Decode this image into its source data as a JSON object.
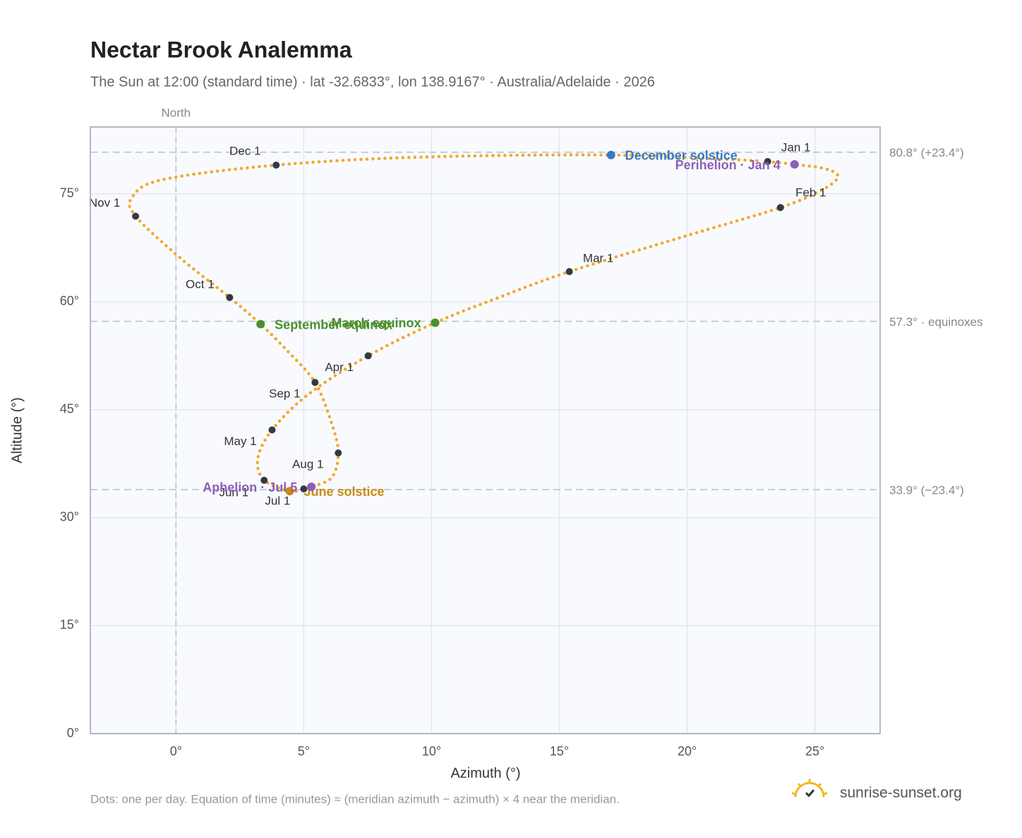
{
  "chart_data": {
    "type": "scatter",
    "title": "Nectar Brook Analemma",
    "subtitle": "The Sun at 12:00 (standard time) · lat -32.6833°, lon 138.9167° · Australia/Adelaide · 2026",
    "x_label": "Azimuth (°)",
    "y_label": "Altitude (°)",
    "xlim": [
      -3.35,
      27.55
    ],
    "ylim": [
      0,
      84.3
    ],
    "xticks": [
      {
        "value": 0,
        "label": "0°"
      },
      {
        "value": 5,
        "label": "5°"
      },
      {
        "value": 10,
        "label": "10°"
      },
      {
        "value": 15,
        "label": "15°"
      },
      {
        "value": 20,
        "label": "20°"
      },
      {
        "value": 25,
        "label": "25°"
      }
    ],
    "yticks": [
      {
        "value": 0,
        "label": "0°"
      },
      {
        "value": 15,
        "label": "15°"
      },
      {
        "value": 30,
        "label": "30°"
      },
      {
        "value": 45,
        "label": "45°"
      },
      {
        "value": 60,
        "label": "60°"
      },
      {
        "value": 75,
        "label": "75°"
      }
    ],
    "grid": true,
    "north_line": {
      "value": 0,
      "label": "North"
    },
    "reference_lines": [
      {
        "value": 80.8,
        "label": "80.8° (+23.4°)"
      },
      {
        "value": 57.3,
        "label": "57.3° · equinoxes"
      },
      {
        "value": 33.9,
        "label": "33.9° (−23.4°)"
      }
    ],
    "path": {
      "color": "#f4a62a",
      "x": [
        23.15,
        24.2,
        25.4,
        25.9,
        25.3,
        23.65,
        19.8,
        15.39,
        12.7,
        10.14,
        7.52,
        5.2,
        3.76,
        3.2,
        3.45,
        4.45,
        5.0,
        5.3,
        6.1,
        6.35,
        6.1,
        5.44,
        4.3,
        3.31,
        2.1,
        0.2,
        -1.58,
        -1.7,
        -0.5,
        3.92,
        9.5,
        17.02,
        22.8
      ],
      "y": [
        79.5,
        79.1,
        78.5,
        77.4,
        75.6,
        73.1,
        69.0,
        64.2,
        60.7,
        57.1,
        52.5,
        47.2,
        42.2,
        38.2,
        35.2,
        33.7,
        34.0,
        34.3,
        35.6,
        39.0,
        43.0,
        48.8,
        53.4,
        56.9,
        60.6,
        66.0,
        71.9,
        74.6,
        77.0,
        79.0,
        80.1,
        80.4,
        79.6
      ]
    },
    "months": {
      "color": "#333a45",
      "labels": [
        "Jan 1",
        "Feb 1",
        "Mar 1",
        "Apr 1",
        "May 1",
        "Jun 1",
        "Jul 1",
        "Aug 1",
        "Sep 1",
        "Oct 1",
        "Nov 1",
        "Dec 1"
      ],
      "x": [
        23.15,
        23.65,
        15.39,
        7.52,
        3.76,
        3.45,
        5.0,
        6.35,
        5.44,
        2.1,
        -1.58,
        3.92
      ],
      "y": [
        79.5,
        73.1,
        64.2,
        52.5,
        42.2,
        35.2,
        34.0,
        39.0,
        48.8,
        60.6,
        71.9,
        79.0
      ]
    },
    "events": [
      {
        "label": "December solstice",
        "x": 17.02,
        "y": 80.4,
        "color": "#3a78c2"
      },
      {
        "label": "Perihelion · Jan 4",
        "x": 24.2,
        "y": 79.1,
        "color": "#8e5fb8"
      },
      {
        "label": "March equinox",
        "x": 10.14,
        "y": 57.1,
        "color": "#4d8f2e"
      },
      {
        "label": "September equinox",
        "x": 3.31,
        "y": 56.9,
        "color": "#4d8f2e"
      },
      {
        "label": "June solstice",
        "x": 4.45,
        "y": 33.7,
        "color": "#c98a12"
      },
      {
        "label": "Aphelion · Jul 5",
        "x": 5.3,
        "y": 34.3,
        "color": "#8e5fb8"
      }
    ],
    "footnote": "Dots: one per day. Equation of time (minutes) ≈ (meridian azimuth − azimuth) × 4 near the meridian.",
    "brand": "sunrise-sunset.org"
  }
}
